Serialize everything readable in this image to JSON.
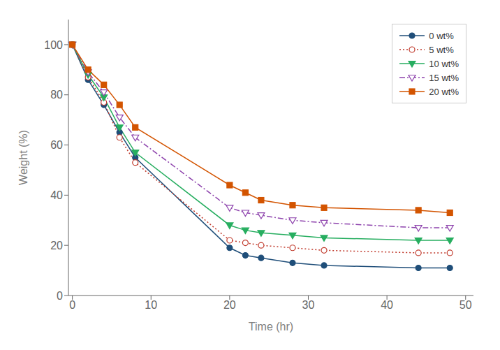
{
  "chart_data": {
    "type": "line",
    "title": "",
    "xlabel": "Time (hr)",
    "ylabel": "Weight (%)",
    "x": [
      0,
      2,
      4,
      6,
      8,
      20,
      22,
      24,
      28,
      32,
      44,
      48
    ],
    "xlim": [
      -0.5,
      51
    ],
    "ylim": [
      0,
      110
    ],
    "xticks": [
      0,
      10,
      20,
      30,
      40,
      50
    ],
    "yticks": [
      0,
      20,
      40,
      60,
      80,
      100
    ],
    "grid": false,
    "legend": "upper right",
    "series": [
      {
        "name": "0 wt%",
        "values": [
          100,
          86,
          76,
          65,
          55,
          19,
          16,
          15,
          13,
          12,
          11,
          11
        ],
        "color": "#1f4e79",
        "marker": "circle",
        "line_style": "solid"
      },
      {
        "name": "5 wt%",
        "values": [
          100,
          87,
          77,
          63,
          53,
          22,
          21,
          20,
          19,
          18,
          17,
          17
        ],
        "color": "#c0392b",
        "marker": "circle-open",
        "line_style": "dotted"
      },
      {
        "name": "10 wt%",
        "values": [
          100,
          88,
          79,
          67,
          57,
          28,
          26,
          25,
          24,
          23,
          22,
          22
        ],
        "color": "#27ae60",
        "marker": "triangle-down",
        "line_style": "solid"
      },
      {
        "name": "15 wt%",
        "values": [
          100,
          89,
          81,
          71,
          63,
          35,
          33,
          32,
          30,
          29,
          27,
          27
        ],
        "color": "#8e44ad",
        "marker": "triangle-down-open",
        "line_style": "dashdot"
      },
      {
        "name": "20 wt%",
        "values": [
          100,
          90,
          84,
          76,
          67,
          44,
          41,
          38,
          36,
          35,
          34,
          33
        ],
        "color": "#d35400",
        "marker": "square",
        "line_style": "solid"
      }
    ]
  }
}
